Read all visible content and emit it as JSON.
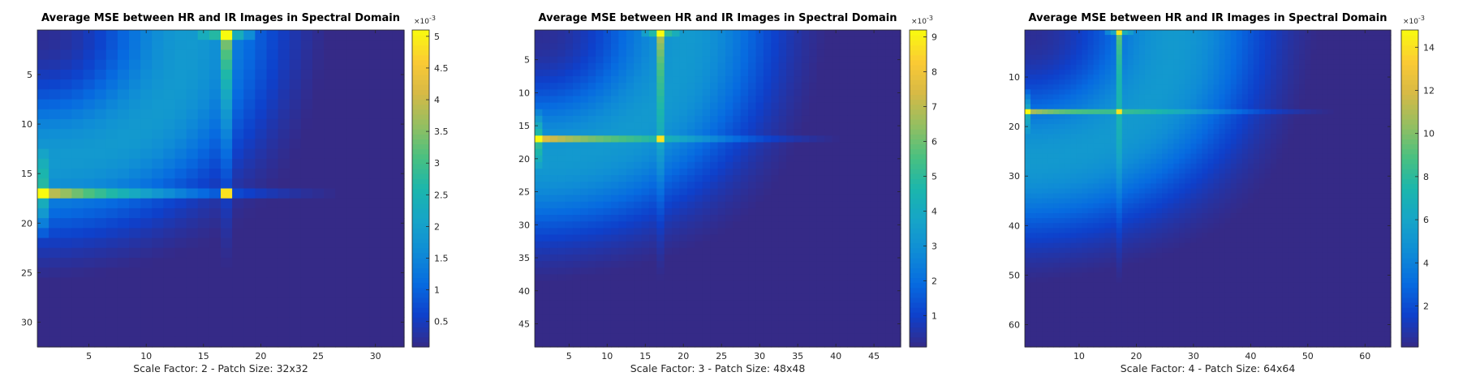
{
  "chart_data": [
    {
      "type": "heatmap",
      "title": "Average MSE between HR and IR Images in Spectral Domain",
      "xlabel": "Scale Factor: 2 - Patch Size: 32x32",
      "size": 32,
      "xticks": [
        5,
        10,
        15,
        20,
        25,
        30
      ],
      "yticks": [
        5,
        10,
        15,
        20,
        25,
        30
      ],
      "peak_index": 17,
      "colorbar": {
        "min": 0.0001,
        "max": 0.0051,
        "ticks": [
          0.5,
          1,
          1.5,
          2,
          2.5,
          3,
          3.5,
          4,
          4.5,
          5
        ],
        "tick_labels": [
          "0.5",
          "1",
          "1.5",
          "2",
          "2.5",
          "3",
          "3.5",
          "4",
          "4.5",
          "5"
        ],
        "exponent_base": "×10",
        "exponent_power": "-3"
      }
    },
    {
      "type": "heatmap",
      "title": "Average MSE between HR and IR Images in Spectral Domain",
      "xlabel": "Scale Factor: 3 - Patch Size: 48x48",
      "size": 48,
      "xticks": [
        5,
        10,
        15,
        20,
        25,
        30,
        35,
        40,
        45
      ],
      "yticks": [
        5,
        10,
        15,
        20,
        25,
        30,
        35,
        40,
        45
      ],
      "peak_index": 17,
      "colorbar": {
        "min": 0.0001,
        "max": 0.0092,
        "ticks": [
          1,
          2,
          3,
          4,
          5,
          6,
          7,
          8,
          9
        ],
        "tick_labels": [
          "1",
          "2",
          "3",
          "4",
          "5",
          "6",
          "7",
          "8",
          "9"
        ],
        "exponent_base": "×10",
        "exponent_power": "-3"
      }
    },
    {
      "type": "heatmap",
      "title": "Average MSE between HR and IR Images in Spectral Domain",
      "xlabel": "Scale Factor: 4 - Patch Size: 64x64",
      "size": 64,
      "xticks": [
        10,
        20,
        30,
        40,
        50,
        60
      ],
      "yticks": [
        10,
        20,
        30,
        40,
        50,
        60
      ],
      "peak_index": 17,
      "colorbar": {
        "min": 0.0001,
        "max": 0.0148,
        "ticks": [
          2,
          4,
          6,
          8,
          10,
          12,
          14
        ],
        "tick_labels": [
          "2",
          "4",
          "6",
          "8",
          "10",
          "12",
          "14"
        ],
        "exponent_base": "×10",
        "exponent_power": "-3"
      }
    }
  ]
}
